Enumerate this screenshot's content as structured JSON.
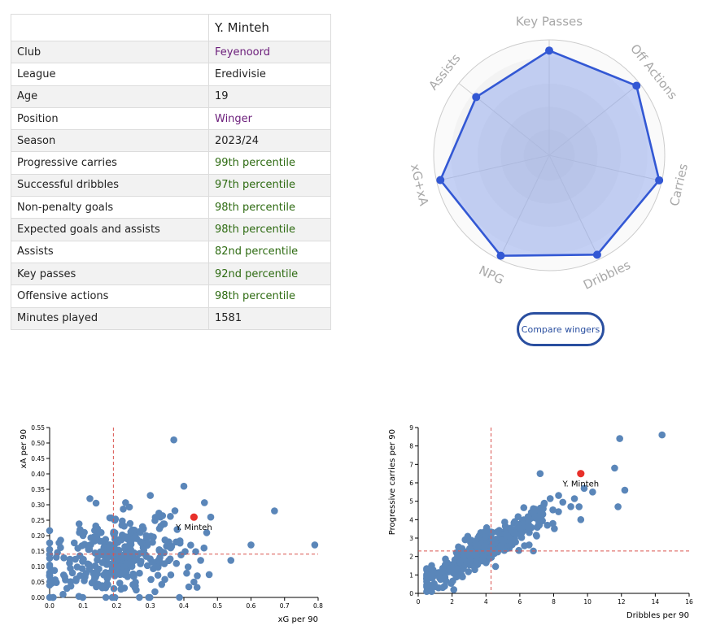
{
  "profile": {
    "player_name": "Y. Minteh",
    "rows": [
      {
        "label": "Club",
        "value": "Feyenoord",
        "style": "purple"
      },
      {
        "label": "League",
        "value": "Eredivisie",
        "style": "plain"
      },
      {
        "label": "Age",
        "value": "19",
        "style": "plain"
      },
      {
        "label": "Position",
        "value": "Winger",
        "style": "purple"
      },
      {
        "label": "Season",
        "value": "2023/24",
        "style": "plain"
      },
      {
        "label": "Progressive carries",
        "value": "99th percentile",
        "style": "green"
      },
      {
        "label": "Successful dribbles",
        "value": "97th percentile",
        "style": "green"
      },
      {
        "label": "Non-penalty goals",
        "value": "98th percentile",
        "style": "green"
      },
      {
        "label": "Expected goals and assists",
        "value": "98th percentile",
        "style": "green"
      },
      {
        "label": "Assists",
        "value": "82nd percentile",
        "style": "green"
      },
      {
        "label": "Key passes",
        "value": "92nd percentile",
        "style": "green"
      },
      {
        "label": "Offensive actions",
        "value": "98th percentile",
        "style": "green"
      },
      {
        "label": "Minutes played",
        "value": "1581",
        "style": "plain"
      }
    ]
  },
  "compare_button": "Compare wingers",
  "colors": {
    "radar_line": "#3358d4",
    "radar_fill": "#8aa2ee",
    "point": "#5a86b9",
    "highlight": "#e8302a",
    "ref_line": "#d9534f"
  },
  "chart_data": [
    {
      "type": "radar",
      "axes": [
        "Key Passes",
        "Off Actions",
        "Carries",
        "Dribbles",
        "NPG",
        "xG+xA",
        "Assists"
      ],
      "values": [
        92,
        98,
        99,
        97,
        98,
        98,
        82
      ],
      "rmax": 100
    },
    {
      "type": "scatter",
      "xlabel": "xG per 90",
      "ylabel": "xA per 90",
      "xlim": [
        0,
        0.8
      ],
      "ylim": [
        0,
        0.55
      ],
      "xticks": [
        "0.0",
        "0.1",
        "0.2",
        "0.3",
        "0.4",
        "0.5",
        "0.6",
        "0.7",
        "0.8"
      ],
      "yticks": [
        "0.00",
        "0.05",
        "0.10",
        "0.15",
        "0.20",
        "0.25",
        "0.30",
        "0.35",
        "0.40",
        "0.45",
        "0.50",
        "0.55"
      ],
      "ref_x": 0.19,
      "ref_y": 0.14,
      "highlight": {
        "label": "Y. Minteh",
        "x": 0.43,
        "y": 0.26
      },
      "outliers": [
        [
          0.37,
          0.51
        ],
        [
          0.4,
          0.36
        ],
        [
          0.67,
          0.28
        ],
        [
          0.48,
          0.26
        ],
        [
          0.79,
          0.17
        ],
        [
          0.6,
          0.17
        ],
        [
          0.54,
          0.12
        ],
        [
          0.45,
          0.12
        ],
        [
          0.44,
          0.07
        ],
        [
          0.43,
          0.05
        ],
        [
          0.01,
          0.0
        ],
        [
          0.0,
          0.04
        ],
        [
          0.04,
          0.01
        ],
        [
          0.12,
          0.32
        ],
        [
          0.3,
          0.33
        ],
        [
          0.33,
          0.26
        ],
        [
          0.02,
          0.13
        ],
        [
          0.38,
          0.22
        ],
        [
          0.46,
          0.16
        ]
      ],
      "cluster": {
        "n": 340,
        "seed": 17,
        "x_mean": 0.2,
        "x_sd": 0.1,
        "x_min": 0.0,
        "x_max": 0.5,
        "y_mean": 0.13,
        "y_slope": 0.15,
        "y_sd": 0.065,
        "y_min": 0.0,
        "y_max": 0.33
      }
    },
    {
      "type": "scatter",
      "xlabel": "Dribbles per 90",
      "ylabel": "Progressive carries per 90",
      "xlim": [
        0,
        16
      ],
      "ylim": [
        0,
        9
      ],
      "xticks": [
        "0",
        "2",
        "4",
        "6",
        "8",
        "10",
        "12",
        "14",
        "16"
      ],
      "yticks": [
        "0",
        "1",
        "2",
        "3",
        "4",
        "5",
        "6",
        "7",
        "8",
        "9"
      ],
      "ref_x": 4.3,
      "ref_y": 2.3,
      "highlight": {
        "label": "Y. Minteh",
        "x": 9.6,
        "y": 6.5
      },
      "outliers": [
        [
          14.4,
          8.6
        ],
        [
          11.9,
          8.4
        ],
        [
          11.6,
          6.8
        ],
        [
          12.2,
          5.6
        ],
        [
          11.8,
          4.7
        ],
        [
          9.5,
          4.7
        ],
        [
          7.2,
          6.5
        ],
        [
          10.3,
          5.5
        ],
        [
          9.8,
          5.7
        ],
        [
          9.6,
          4.0
        ],
        [
          0.6,
          0.3
        ],
        [
          6.8,
          2.3
        ],
        [
          1.2,
          0.3
        ],
        [
          2.1,
          0.2
        ]
      ],
      "cluster": {
        "n": 380,
        "seed": 41,
        "x_mean": 4.0,
        "x_sd": 2.0,
        "x_min": 0.5,
        "x_max": 9.5,
        "y_mean": 2.45,
        "y_slope": 0.52,
        "y_sd": 0.45,
        "y_min": 0.1,
        "y_max": 5.8
      }
    }
  ]
}
